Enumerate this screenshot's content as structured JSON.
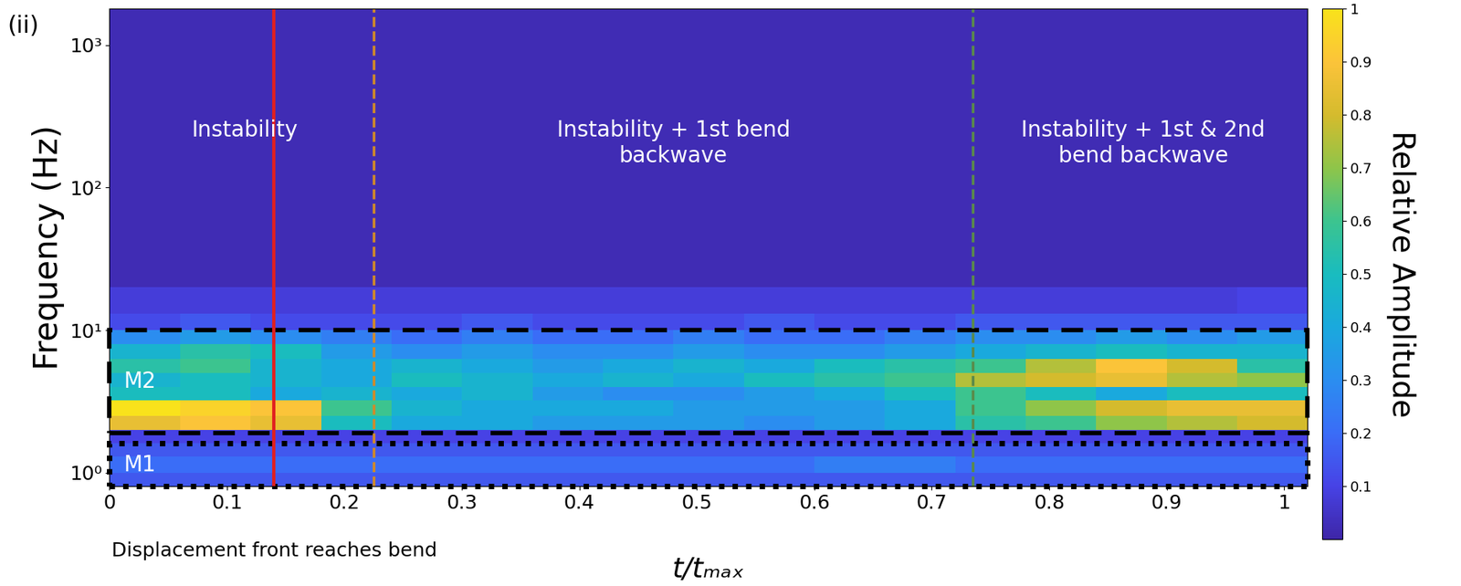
{
  "chart_data": {
    "type": "heatmap",
    "panel_label": "(ii)",
    "x_label": "t/tₘₐₓ",
    "y_label": "Frequency (Hz)",
    "colorbar_label": "Relative Amplitude",
    "log": "y",
    "xlim": [
      0,
      1.02
    ],
    "xticks": [
      0,
      0.1,
      0.2,
      0.3,
      0.4,
      0.5,
      0.6,
      0.7,
      0.8,
      0.9,
      1
    ],
    "ylim": [
      0.8,
      1800
    ],
    "yticks": [
      {
        "value": 1,
        "label": "10⁰"
      },
      {
        "value": 10,
        "label": "10¹"
      },
      {
        "value": 100,
        "label": "10²"
      },
      {
        "value": 1000,
        "label": "10³"
      }
    ],
    "colorbar_range": [
      0,
      1
    ],
    "colorbar_ticks": [
      0.1,
      0.2,
      0.3,
      0.4,
      0.5,
      0.6,
      0.7,
      0.8,
      0.9,
      1
    ],
    "x_edges": [
      0,
      0.06,
      0.12,
      0.18,
      0.24,
      0.3,
      0.36,
      0.42,
      0.48,
      0.54,
      0.6,
      0.66,
      0.72,
      0.78,
      0.84,
      0.9,
      0.96,
      1.02
    ],
    "y_edges": [
      0.8,
      1.0,
      1.3,
      1.6,
      2.0,
      2.5,
      3.2,
      4.0,
      5.0,
      6.3,
      8,
      10,
      13,
      20,
      40,
      100,
      300,
      1000,
      1800
    ],
    "cells": [
      [
        0.15,
        0.15,
        0.15,
        0.15,
        0.15,
        0.15,
        0.15,
        0.15,
        0.15,
        0.15,
        0.15,
        0.15,
        0.15,
        0.15,
        0.15,
        0.15,
        0.15
      ],
      [
        0.2,
        0.2,
        0.2,
        0.2,
        0.2,
        0.2,
        0.2,
        0.2,
        0.2,
        0.2,
        0.25,
        0.25,
        0.2,
        0.2,
        0.2,
        0.2,
        0.2
      ],
      [
        0.15,
        0.15,
        0.15,
        0.15,
        0.15,
        0.15,
        0.15,
        0.15,
        0.15,
        0.15,
        0.15,
        0.15,
        0.15,
        0.15,
        0.15,
        0.15,
        0.15
      ],
      [
        0.1,
        0.1,
        0.1,
        0.1,
        0.1,
        0.1,
        0.1,
        0.1,
        0.1,
        0.1,
        0.1,
        0.1,
        0.1,
        0.1,
        0.1,
        0.1,
        0.1
      ],
      [
        0.85,
        0.9,
        0.85,
        0.5,
        0.4,
        0.4,
        0.35,
        0.35,
        0.35,
        0.3,
        0.35,
        0.4,
        0.55,
        0.6,
        0.7,
        0.75,
        0.8
      ],
      [
        1.0,
        0.95,
        0.9,
        0.6,
        0.45,
        0.4,
        0.4,
        0.4,
        0.35,
        0.35,
        0.35,
        0.4,
        0.6,
        0.7,
        0.8,
        0.85,
        0.85
      ],
      [
        0.5,
        0.5,
        0.4,
        0.45,
        0.4,
        0.45,
        0.35,
        0.3,
        0.3,
        0.35,
        0.4,
        0.5,
        0.6,
        0.5,
        0.4,
        0.5,
        0.5
      ],
      [
        0.45,
        0.5,
        0.45,
        0.4,
        0.5,
        0.45,
        0.4,
        0.45,
        0.4,
        0.5,
        0.55,
        0.6,
        0.75,
        0.8,
        0.85,
        0.75,
        0.7
      ],
      [
        0.55,
        0.6,
        0.45,
        0.4,
        0.45,
        0.4,
        0.35,
        0.4,
        0.45,
        0.4,
        0.5,
        0.55,
        0.6,
        0.75,
        0.9,
        0.8,
        0.55
      ],
      [
        0.45,
        0.55,
        0.5,
        0.35,
        0.3,
        0.35,
        0.3,
        0.3,
        0.35,
        0.3,
        0.3,
        0.35,
        0.4,
        0.45,
        0.5,
        0.45,
        0.45
      ],
      [
        0.3,
        0.35,
        0.3,
        0.25,
        0.2,
        0.25,
        0.2,
        0.2,
        0.25,
        0.2,
        0.2,
        0.25,
        0.3,
        0.3,
        0.35,
        0.3,
        0.35
      ],
      [
        0.12,
        0.15,
        0.12,
        0.12,
        0.12,
        0.15,
        0.12,
        0.12,
        0.12,
        0.15,
        0.12,
        0.12,
        0.15,
        0.15,
        0.15,
        0.15,
        0.15
      ],
      [
        0.08,
        0.08,
        0.08,
        0.08,
        0.08,
        0.08,
        0.08,
        0.08,
        0.08,
        0.08,
        0.08,
        0.08,
        0.08,
        0.08,
        0.08,
        0.08,
        0.1
      ],
      [
        0.02,
        0.02,
        0.02,
        0.02,
        0.02,
        0.02,
        0.02,
        0.02,
        0.02,
        0.02,
        0.02,
        0.02,
        0.02,
        0.02,
        0.02,
        0.02,
        0.02
      ],
      [
        0.02,
        0.02,
        0.02,
        0.02,
        0.02,
        0.02,
        0.02,
        0.02,
        0.02,
        0.02,
        0.02,
        0.02,
        0.02,
        0.02,
        0.02,
        0.02,
        0.02
      ],
      [
        0.02,
        0.02,
        0.02,
        0.02,
        0.02,
        0.02,
        0.02,
        0.02,
        0.02,
        0.02,
        0.02,
        0.02,
        0.02,
        0.02,
        0.02,
        0.02,
        0.02
      ],
      [
        0.02,
        0.02,
        0.02,
        0.02,
        0.02,
        0.02,
        0.02,
        0.02,
        0.02,
        0.02,
        0.02,
        0.02,
        0.02,
        0.02,
        0.02,
        0.02,
        0.02
      ],
      [
        0.02,
        0.02,
        0.02,
        0.02,
        0.02,
        0.02,
        0.02,
        0.02,
        0.02,
        0.02,
        0.02,
        0.02,
        0.02,
        0.02,
        0.02,
        0.02,
        0.02
      ]
    ],
    "vertical_lines": [
      {
        "x": 0.14,
        "color": "#e02020",
        "line_style": "solid",
        "label": "Displacement front reaches bend"
      },
      {
        "x": 0.225,
        "color": "#d08a2a",
        "line_style": "dashed"
      },
      {
        "x": 0.735,
        "color": "#5a8a4a",
        "line_style": "dashed"
      }
    ],
    "phase_labels": [
      "Instability",
      "Instability + 1st bend\nbackwave",
      "Instability + 1st & 2nd\nbend backwave"
    ],
    "regions": [
      {
        "label": "M2",
        "ylim": [
          1.9,
          10
        ],
        "line_style": "dashed"
      },
      {
        "label": "M1",
        "ylim": [
          0.8,
          1.6
        ],
        "line_style": "dotted"
      }
    ]
  }
}
